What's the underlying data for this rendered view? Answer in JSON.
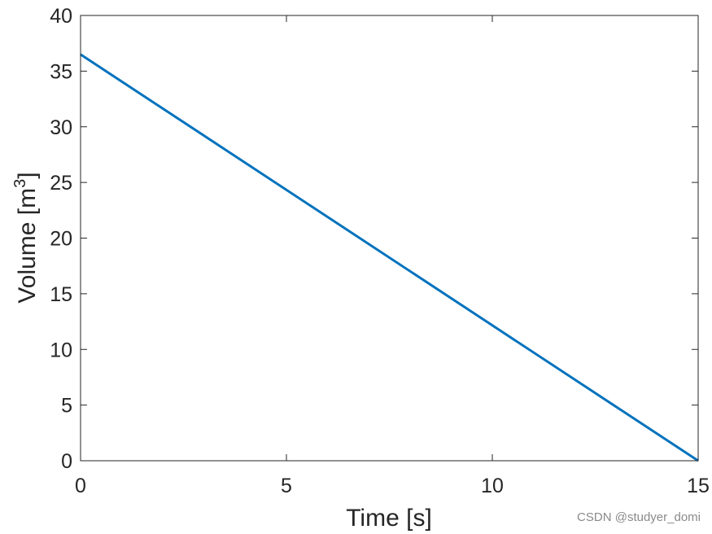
{
  "chart_data": {
    "type": "line",
    "xlabel": "Time [s]",
    "ylabel": {
      "text": "Volume [m",
      "superscript": "3",
      "suffix": "]"
    },
    "xlim": [
      0,
      15
    ],
    "ylim": [
      0,
      40
    ],
    "x_ticks": [
      "0",
      "5",
      "10",
      "15"
    ],
    "x_tick_values": [
      0,
      5,
      10,
      15
    ],
    "y_ticks": [
      "0",
      "5",
      "10",
      "15",
      "20",
      "25",
      "30",
      "35",
      "40"
    ],
    "y_tick_values": [
      0,
      5,
      10,
      15,
      20,
      25,
      30,
      35,
      40
    ],
    "grid": false,
    "series": [
      {
        "color": "#0072BD",
        "x": [
          0,
          15
        ],
        "y": [
          36.5,
          0
        ]
      }
    ]
  },
  "watermark": "CSDN @studyer_domi"
}
